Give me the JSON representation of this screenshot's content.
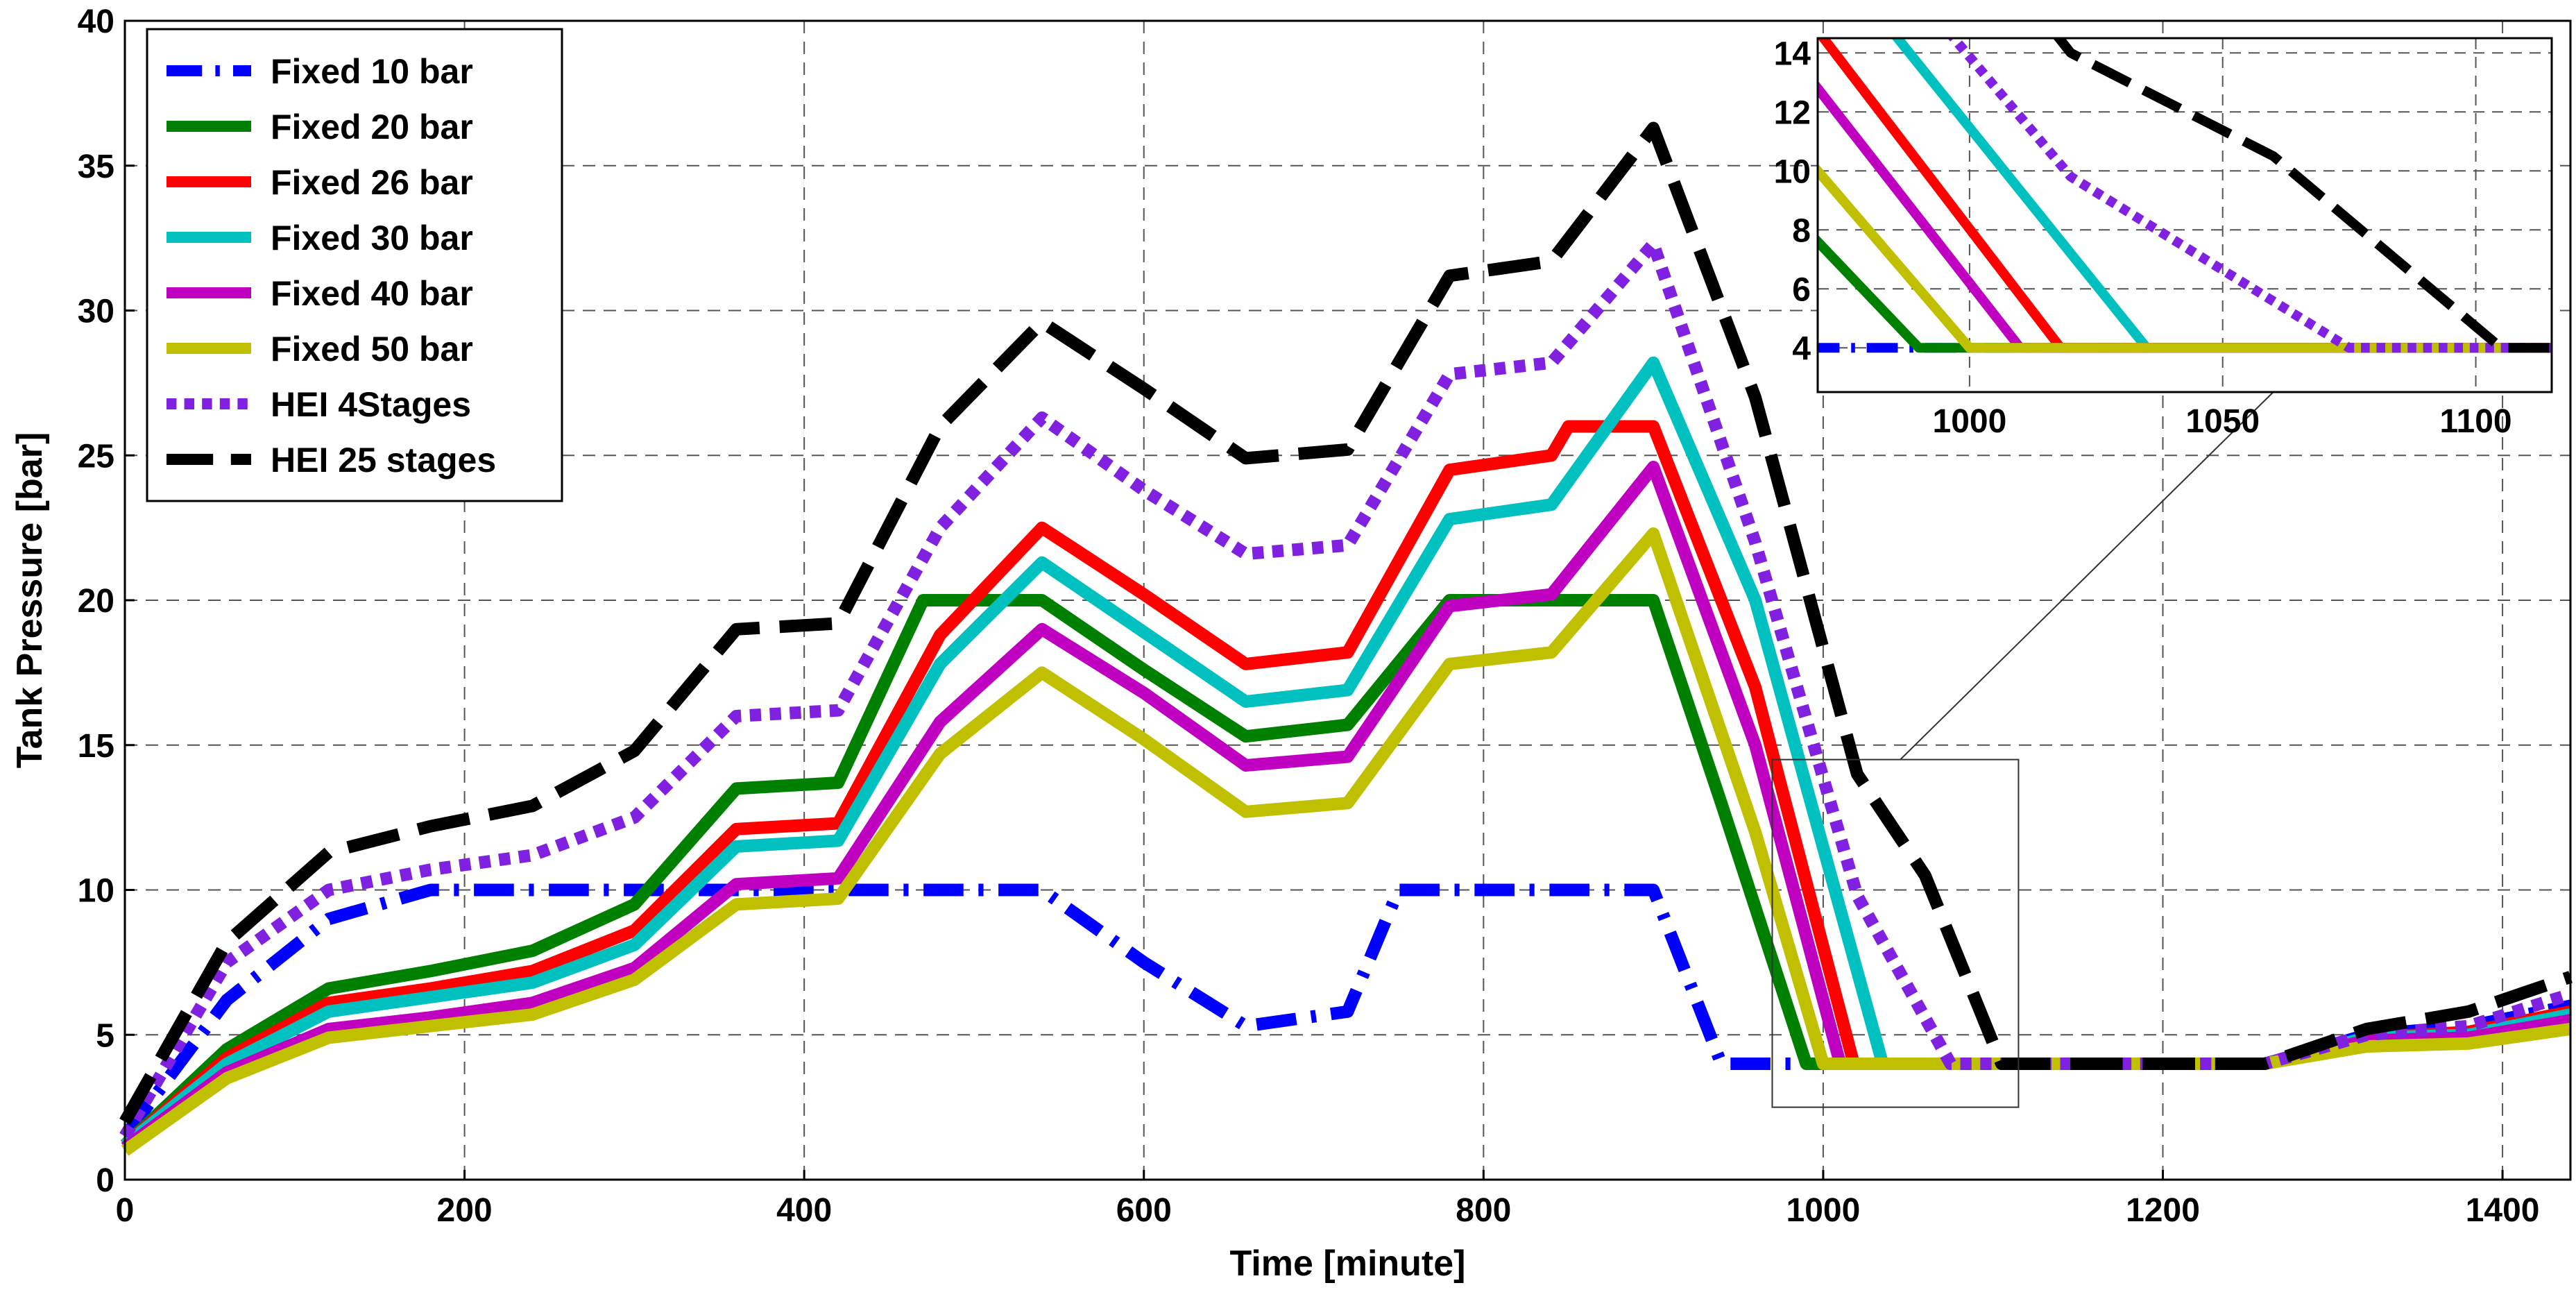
{
  "chart_data": [
    {
      "type": "line",
      "xlabel": "Time [minute]",
      "ylabel": "Tank Pressure [bar]",
      "xlim": [
        0,
        1440
      ],
      "ylim": [
        0,
        40
      ],
      "xticks": [
        0,
        200,
        400,
        600,
        800,
        1000,
        1200,
        1400
      ],
      "yticks": [
        0,
        5,
        10,
        15,
        20,
        25,
        30,
        35,
        40
      ],
      "grid": true,
      "legend_position": "top-left",
      "series": [
        {
          "name": "Fixed 10 bar",
          "color": "#0000ff",
          "style": "dashdot",
          "x": [
            0,
            60,
            120,
            180,
            240,
            300,
            360,
            420,
            480,
            540,
            600,
            660,
            720,
            750,
            780,
            840,
            900,
            940,
            1000,
            1060,
            1140,
            1200,
            1260,
            1320,
            1380,
            1440
          ],
          "y": [
            1.5,
            6.2,
            9.0,
            10,
            10,
            10,
            10,
            10,
            10,
            10,
            7.5,
            5.3,
            5.8,
            10,
            10,
            10,
            10,
            4,
            4,
            4,
            4,
            4,
            4,
            5.0,
            5.3,
            6.0
          ]
        },
        {
          "name": "Fixed 20 bar",
          "color": "#008000",
          "style": "solid",
          "x": [
            0,
            60,
            120,
            180,
            240,
            300,
            360,
            420,
            470,
            540,
            600,
            660,
            720,
            780,
            840,
            900,
            940,
            990,
            1000,
            1100,
            1200,
            1260,
            1320,
            1380,
            1440
          ],
          "y": [
            1.2,
            4.5,
            6.6,
            7.2,
            7.9,
            9.5,
            13.5,
            13.7,
            20,
            20,
            17.6,
            15.3,
            15.7,
            20,
            20,
            20,
            13,
            4,
            4,
            4,
            4,
            4,
            4.8,
            5.0,
            5.6
          ]
        },
        {
          "name": "Fixed 26 bar",
          "color": "#ff0000",
          "style": "solid",
          "x": [
            0,
            60,
            120,
            180,
            240,
            300,
            360,
            420,
            480,
            540,
            600,
            660,
            720,
            780,
            840,
            850,
            900,
            960,
            1018,
            1100,
            1200,
            1260,
            1320,
            1380,
            1440
          ],
          "y": [
            1.2,
            4.2,
            6.1,
            6.6,
            7.2,
            8.6,
            12.1,
            12.3,
            18.8,
            22.5,
            20.2,
            17.8,
            18.2,
            24.5,
            25,
            26,
            26,
            17,
            4,
            4,
            4,
            4,
            4.9,
            5.1,
            5.8
          ]
        },
        {
          "name": "Fixed 30 bar",
          "color": "#00c0c0",
          "style": "solid",
          "x": [
            0,
            60,
            120,
            180,
            240,
            300,
            360,
            420,
            480,
            540,
            600,
            660,
            720,
            780,
            840,
            900,
            960,
            1035,
            1100,
            1200,
            1260,
            1320,
            1380,
            1440
          ],
          "y": [
            1.2,
            4.0,
            5.8,
            6.3,
            6.8,
            8.1,
            11.5,
            11.7,
            17.8,
            21.3,
            18.9,
            16.5,
            16.9,
            22.8,
            23.3,
            28.2,
            20,
            4,
            4,
            4,
            4,
            4.9,
            5.0,
            5.7
          ]
        },
        {
          "name": "Fixed 40 bar",
          "color": "#c000c0",
          "style": "solid",
          "x": [
            0,
            60,
            120,
            180,
            240,
            300,
            360,
            420,
            480,
            540,
            600,
            660,
            720,
            780,
            840,
            900,
            960,
            1010,
            1100,
            1200,
            1260,
            1320,
            1380,
            1440
          ],
          "y": [
            1.1,
            3.7,
            5.2,
            5.6,
            6.1,
            7.3,
            10.2,
            10.4,
            15.8,
            19.0,
            16.8,
            14.3,
            14.6,
            19.8,
            20.2,
            24.6,
            15,
            4,
            4,
            4,
            4,
            4.8,
            4.9,
            5.5
          ]
        },
        {
          "name": "Fixed 50 bar",
          "color": "#c0c000",
          "style": "solid",
          "x": [
            0,
            60,
            120,
            180,
            240,
            300,
            360,
            420,
            480,
            540,
            600,
            660,
            720,
            780,
            840,
            900,
            960,
            1000,
            1100,
            1200,
            1260,
            1320,
            1380,
            1440
          ],
          "y": [
            1.0,
            3.5,
            4.9,
            5.3,
            5.7,
            6.9,
            9.5,
            9.7,
            14.7,
            17.5,
            15.2,
            12.7,
            13.0,
            17.8,
            18.2,
            22.3,
            12,
            4,
            4,
            4,
            4,
            4.6,
            4.7,
            5.2
          ]
        },
        {
          "name": "HEI 4Stages",
          "color": "#8020e0",
          "style": "dotted",
          "x": [
            0,
            60,
            120,
            180,
            240,
            300,
            360,
            420,
            480,
            540,
            600,
            660,
            720,
            780,
            840,
            900,
            960,
            1020,
            1075,
            1100,
            1200,
            1260,
            1320,
            1380,
            1440
          ],
          "y": [
            1.5,
            7.5,
            10.0,
            10.7,
            11.2,
            12.5,
            16.0,
            16.2,
            22.5,
            26.3,
            23.8,
            21.6,
            21.9,
            27.8,
            28.2,
            32.3,
            22,
            9.8,
            4,
            4,
            4,
            4,
            5.0,
            5.3,
            6.4
          ]
        },
        {
          "name": "HEI 25 stages",
          "color": "#000000",
          "style": "dashed",
          "x": [
            0,
            60,
            120,
            180,
            240,
            300,
            360,
            420,
            480,
            540,
            600,
            660,
            720,
            780,
            840,
            900,
            960,
            1020,
            1060,
            1105,
            1200,
            1260,
            1320,
            1380,
            1440
          ],
          "y": [
            2.0,
            8.2,
            11.3,
            12.2,
            12.9,
            14.8,
            19.0,
            19.2,
            26.0,
            29.6,
            27.3,
            24.9,
            25.2,
            31.2,
            31.7,
            36.3,
            27,
            14,
            10.5,
            4,
            4,
            4,
            5.2,
            5.8,
            7.0
          ]
        }
      ]
    },
    {
      "type": "line",
      "role": "inset zoom",
      "xlim": [
        970,
        1115
      ],
      "ylim": [
        2.5,
        14.5
      ],
      "xticks": [
        1000,
        1050,
        1100
      ],
      "yticks": [
        4,
        6,
        8,
        10,
        12,
        14
      ],
      "grid": true,
      "zoom_box_main_axes": {
        "x": [
          970,
          1115
        ],
        "y": [
          2.5,
          14.5
        ]
      }
    }
  ]
}
